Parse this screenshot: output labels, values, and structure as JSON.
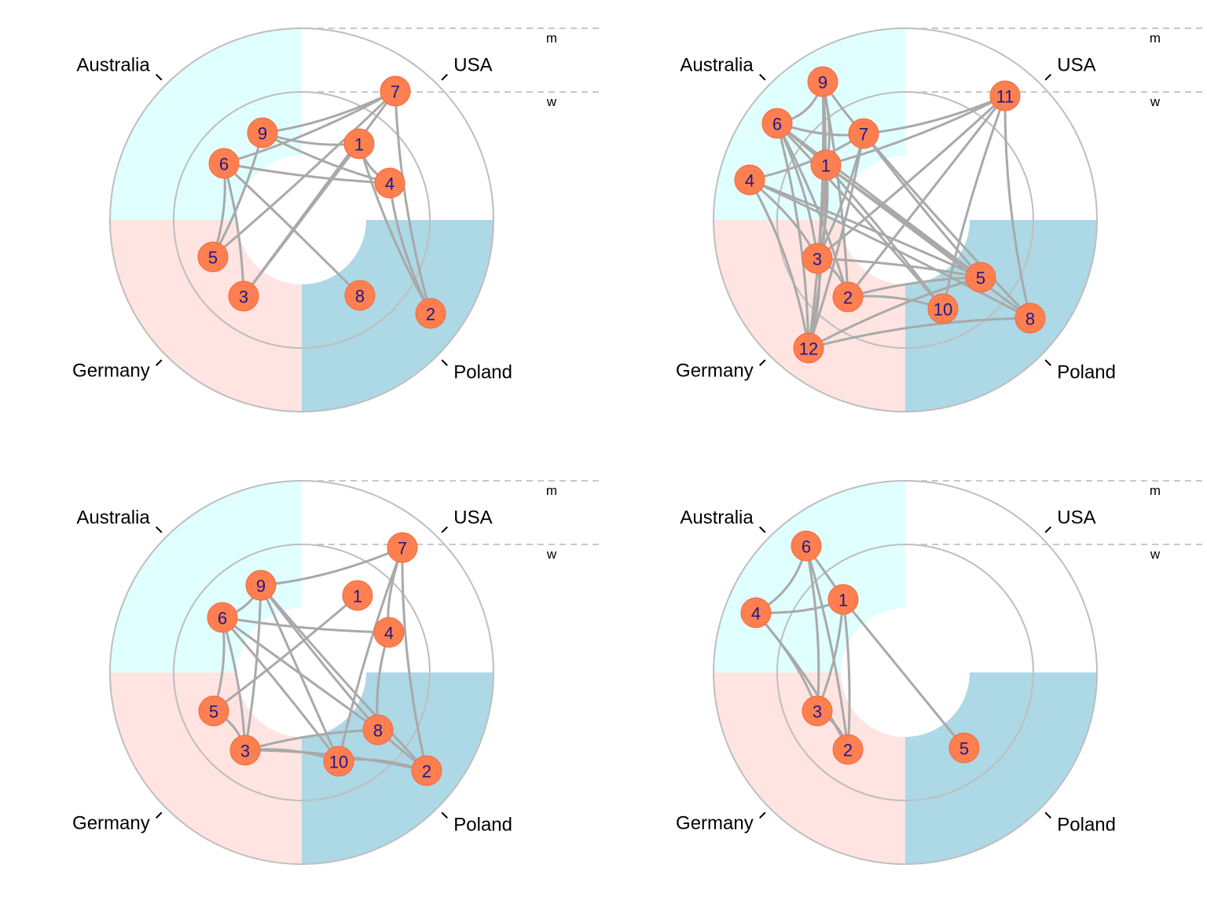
{
  "colors": {
    "australia": "#e0ffff",
    "usa": "#ffffff",
    "germany": "#ffe4e1",
    "poland": "#add8e6",
    "ring": "#bebebe",
    "edge": "#a9a9a9",
    "node": "#ff7f50",
    "node_text": "#1a1a8c",
    "guide": "#c8c8c8"
  },
  "sectors": {
    "australia": "Australia",
    "usa": "USA",
    "germany": "Germany",
    "poland": "Poland"
  },
  "levels": {
    "outer": "m",
    "inner": "w"
  },
  "panels": [
    {
      "id": "top-left",
      "nodes": [
        {
          "id": "7",
          "sector": "USA",
          "level": "m"
        },
        {
          "id": "9",
          "sector": "Australia",
          "level": "w"
        },
        {
          "id": "1",
          "sector": "USA",
          "level": "w"
        },
        {
          "id": "6",
          "sector": "Australia",
          "level": "w"
        },
        {
          "id": "4",
          "sector": "USA",
          "level": "w"
        },
        {
          "id": "5",
          "sector": "Germany",
          "level": "w"
        },
        {
          "id": "3",
          "sector": "Germany",
          "level": "w"
        },
        {
          "id": "8",
          "sector": "Poland",
          "level": "w"
        },
        {
          "id": "2",
          "sector": "Poland",
          "level": "m"
        }
      ],
      "edges": [
        [
          "9",
          "7"
        ],
        [
          "9",
          "1"
        ],
        [
          "9",
          "4"
        ],
        [
          "6",
          "7"
        ],
        [
          "6",
          "4"
        ],
        [
          "6",
          "5"
        ],
        [
          "6",
          "8"
        ],
        [
          "5",
          "7"
        ],
        [
          "5",
          "9"
        ],
        [
          "3",
          "7"
        ],
        [
          "3",
          "6"
        ],
        [
          "3",
          "1"
        ],
        [
          "1",
          "4"
        ],
        [
          "4",
          "2"
        ],
        [
          "7",
          "2"
        ],
        [
          "1",
          "2"
        ]
      ]
    },
    {
      "id": "top-right",
      "nodes": [
        {
          "id": "9",
          "sector": "Australia",
          "level": "m"
        },
        {
          "id": "11",
          "sector": "USA",
          "level": "m"
        },
        {
          "id": "6",
          "sector": "Australia",
          "level": "m"
        },
        {
          "id": "7",
          "sector": "USA",
          "level": "w"
        },
        {
          "id": "1",
          "sector": "Australia",
          "level": "w"
        },
        {
          "id": "4",
          "sector": "Australia",
          "level": "m"
        },
        {
          "id": "3",
          "sector": "Germany",
          "level": "w"
        },
        {
          "id": "5",
          "sector": "Poland",
          "level": "w"
        },
        {
          "id": "2",
          "sector": "Germany",
          "level": "w"
        },
        {
          "id": "10",
          "sector": "Poland",
          "level": "w"
        },
        {
          "id": "8",
          "sector": "Poland",
          "level": "m"
        },
        {
          "id": "12",
          "sector": "Germany",
          "level": "m"
        }
      ],
      "edges": [
        [
          "9",
          "6"
        ],
        [
          "9",
          "7"
        ],
        [
          "9",
          "1"
        ],
        [
          "9",
          "3"
        ],
        [
          "9",
          "2"
        ],
        [
          "6",
          "7"
        ],
        [
          "6",
          "1"
        ],
        [
          "6",
          "3"
        ],
        [
          "6",
          "2"
        ],
        [
          "6",
          "12"
        ],
        [
          "6",
          "5"
        ],
        [
          "7",
          "11"
        ],
        [
          "1",
          "11"
        ],
        [
          "7",
          "3"
        ],
        [
          "7",
          "12"
        ],
        [
          "7",
          "8"
        ],
        [
          "7",
          "5"
        ],
        [
          "1",
          "5"
        ],
        [
          "1",
          "10"
        ],
        [
          "1",
          "3"
        ],
        [
          "1",
          "12"
        ],
        [
          "4",
          "7"
        ],
        [
          "4",
          "3"
        ],
        [
          "4",
          "5"
        ],
        [
          "4",
          "12"
        ],
        [
          "4",
          "8"
        ],
        [
          "11",
          "2"
        ],
        [
          "11",
          "3"
        ],
        [
          "11",
          "8"
        ],
        [
          "11",
          "10"
        ],
        [
          "3",
          "5"
        ],
        [
          "3",
          "12"
        ],
        [
          "2",
          "10"
        ],
        [
          "2",
          "5"
        ],
        [
          "12",
          "5"
        ],
        [
          "12",
          "8"
        ],
        [
          "2",
          "3"
        ],
        [
          "9",
          "12"
        ],
        [
          "6",
          "10"
        ],
        [
          "1",
          "8"
        ]
      ]
    },
    {
      "id": "bottom-left",
      "nodes": [
        {
          "id": "7",
          "sector": "USA",
          "level": "m"
        },
        {
          "id": "9",
          "sector": "Australia",
          "level": "w"
        },
        {
          "id": "1",
          "sector": "USA",
          "level": "w"
        },
        {
          "id": "6",
          "sector": "Australia",
          "level": "w"
        },
        {
          "id": "4",
          "sector": "USA",
          "level": "w"
        },
        {
          "id": "5",
          "sector": "Germany",
          "level": "w"
        },
        {
          "id": "8",
          "sector": "Poland",
          "level": "w"
        },
        {
          "id": "3",
          "sector": "Germany",
          "level": "w"
        },
        {
          "id": "10",
          "sector": "Poland",
          "level": "w"
        },
        {
          "id": "2",
          "sector": "Poland",
          "level": "m"
        }
      ],
      "edges": [
        [
          "9",
          "7"
        ],
        [
          "9",
          "6"
        ],
        [
          "9",
          "3"
        ],
        [
          "9",
          "8"
        ],
        [
          "9",
          "10"
        ],
        [
          "6",
          "4"
        ],
        [
          "6",
          "5"
        ],
        [
          "6",
          "8"
        ],
        [
          "6",
          "10"
        ],
        [
          "6",
          "3"
        ],
        [
          "5",
          "1"
        ],
        [
          "5",
          "3"
        ],
        [
          "7",
          "4"
        ],
        [
          "7",
          "2"
        ],
        [
          "7",
          "10"
        ],
        [
          "4",
          "8"
        ],
        [
          "3",
          "8"
        ],
        [
          "3",
          "10"
        ],
        [
          "3",
          "2"
        ],
        [
          "10",
          "2"
        ],
        [
          "8",
          "2"
        ],
        [
          "9",
          "2"
        ]
      ]
    },
    {
      "id": "bottom-right",
      "nodes": [
        {
          "id": "6",
          "sector": "Australia",
          "level": "m"
        },
        {
          "id": "1",
          "sector": "Australia",
          "level": "w"
        },
        {
          "id": "4",
          "sector": "Australia",
          "level": "m"
        },
        {
          "id": "3",
          "sector": "Germany",
          "level": "w"
        },
        {
          "id": "2",
          "sector": "Germany",
          "level": "w"
        },
        {
          "id": "5",
          "sector": "Poland",
          "level": "w"
        }
      ],
      "edges": [
        [
          "6",
          "4"
        ],
        [
          "6",
          "1"
        ],
        [
          "6",
          "3"
        ],
        [
          "6",
          "2"
        ],
        [
          "4",
          "1"
        ],
        [
          "4",
          "3"
        ],
        [
          "4",
          "2"
        ],
        [
          "1",
          "3"
        ],
        [
          "1",
          "2"
        ],
        [
          "1",
          "5"
        ],
        [
          "3",
          "2"
        ]
      ]
    }
  ]
}
